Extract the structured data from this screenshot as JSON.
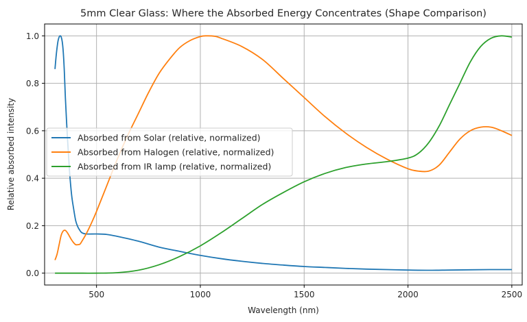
{
  "chart_data": {
    "type": "line",
    "title": "5mm Clear Glass: Where the Absorbed Energy Concentrates (Shape Comparison)",
    "xlabel": "Wavelength (nm)",
    "ylabel": "Relative absorbed intensity",
    "xlim": [
      250,
      2550
    ],
    "ylim": [
      -0.05,
      1.05
    ],
    "xticks": [
      500,
      1000,
      1500,
      2000,
      2500
    ],
    "yticks": [
      0.0,
      0.2,
      0.4,
      0.6,
      0.8,
      1.0
    ],
    "xtick_labels": [
      "500",
      "1000",
      "1500",
      "2000",
      "2500"
    ],
    "ytick_labels": [
      "0.0",
      "0.2",
      "0.4",
      "0.6",
      "0.8",
      "1.0"
    ],
    "grid": true,
    "legend_position": "center-left",
    "series": [
      {
        "name": "Absorbed from Solar (relative, normalized)",
        "color": "#1f77b4",
        "points": [
          [
            300,
            0.86
          ],
          [
            305,
            0.91
          ],
          [
            310,
            0.95
          ],
          [
            315,
            0.98
          ],
          [
            320,
            0.995
          ],
          [
            325,
            1.0
          ],
          [
            330,
            0.995
          ],
          [
            335,
            0.975
          ],
          [
            340,
            0.93
          ],
          [
            345,
            0.85
          ],
          [
            350,
            0.74
          ],
          [
            360,
            0.57
          ],
          [
            370,
            0.43
          ],
          [
            380,
            0.33
          ],
          [
            390,
            0.27
          ],
          [
            400,
            0.22
          ],
          [
            410,
            0.195
          ],
          [
            420,
            0.18
          ],
          [
            430,
            0.17
          ],
          [
            450,
            0.165
          ],
          [
            500,
            0.165
          ],
          [
            550,
            0.163
          ],
          [
            600,
            0.155
          ],
          [
            700,
            0.135
          ],
          [
            800,
            0.11
          ],
          [
            900,
            0.092
          ],
          [
            1000,
            0.075
          ],
          [
            1100,
            0.061
          ],
          [
            1200,
            0.05
          ],
          [
            1300,
            0.041
          ],
          [
            1400,
            0.034
          ],
          [
            1500,
            0.028
          ],
          [
            1600,
            0.024
          ],
          [
            1700,
            0.02
          ],
          [
            1800,
            0.017
          ],
          [
            1900,
            0.015
          ],
          [
            2000,
            0.013
          ],
          [
            2100,
            0.012
          ],
          [
            2200,
            0.013
          ],
          [
            2300,
            0.014
          ],
          [
            2400,
            0.015
          ],
          [
            2500,
            0.015
          ]
        ]
      },
      {
        "name": "Absorbed from Halogen (relative, normalized)",
        "color": "#ff7f0e",
        "points": [
          [
            300,
            0.055
          ],
          [
            310,
            0.08
          ],
          [
            320,
            0.12
          ],
          [
            330,
            0.16
          ],
          [
            340,
            0.178
          ],
          [
            350,
            0.18
          ],
          [
            360,
            0.17
          ],
          [
            370,
            0.155
          ],
          [
            380,
            0.14
          ],
          [
            390,
            0.128
          ],
          [
            400,
            0.12
          ],
          [
            410,
            0.12
          ],
          [
            420,
            0.122
          ],
          [
            430,
            0.135
          ],
          [
            450,
            0.165
          ],
          [
            475,
            0.21
          ],
          [
            500,
            0.26
          ],
          [
            550,
            0.37
          ],
          [
            600,
            0.48
          ],
          [
            650,
            0.58
          ],
          [
            700,
            0.67
          ],
          [
            750,
            0.76
          ],
          [
            800,
            0.84
          ],
          [
            850,
            0.9
          ],
          [
            900,
            0.95
          ],
          [
            950,
            0.98
          ],
          [
            1000,
            0.997
          ],
          [
            1030,
            1.0
          ],
          [
            1070,
            0.998
          ],
          [
            1100,
            0.99
          ],
          [
            1200,
            0.955
          ],
          [
            1300,
            0.9
          ],
          [
            1400,
            0.82
          ],
          [
            1500,
            0.74
          ],
          [
            1600,
            0.66
          ],
          [
            1700,
            0.59
          ],
          [
            1800,
            0.53
          ],
          [
            1900,
            0.48
          ],
          [
            2000,
            0.44
          ],
          [
            2050,
            0.43
          ],
          [
            2100,
            0.43
          ],
          [
            2150,
            0.455
          ],
          [
            2200,
            0.51
          ],
          [
            2250,
            0.565
          ],
          [
            2300,
            0.6
          ],
          [
            2350,
            0.615
          ],
          [
            2400,
            0.615
          ],
          [
            2450,
            0.6
          ],
          [
            2500,
            0.58
          ]
        ]
      },
      {
        "name": "Absorbed from IR lamp (relative, normalized)",
        "color": "#2ca02c",
        "points": [
          [
            300,
            0.0
          ],
          [
            400,
            0.0
          ],
          [
            500,
            0.0
          ],
          [
            600,
            0.002
          ],
          [
            700,
            0.012
          ],
          [
            800,
            0.035
          ],
          [
            900,
            0.07
          ],
          [
            1000,
            0.115
          ],
          [
            1100,
            0.17
          ],
          [
            1200,
            0.23
          ],
          [
            1300,
            0.29
          ],
          [
            1400,
            0.34
          ],
          [
            1500,
            0.385
          ],
          [
            1600,
            0.42
          ],
          [
            1700,
            0.445
          ],
          [
            1800,
            0.46
          ],
          [
            1900,
            0.47
          ],
          [
            2000,
            0.485
          ],
          [
            2050,
            0.505
          ],
          [
            2100,
            0.55
          ],
          [
            2150,
            0.62
          ],
          [
            2200,
            0.71
          ],
          [
            2250,
            0.8
          ],
          [
            2300,
            0.89
          ],
          [
            2350,
            0.955
          ],
          [
            2400,
            0.99
          ],
          [
            2450,
            1.0
          ],
          [
            2500,
            0.995
          ]
        ]
      }
    ]
  }
}
